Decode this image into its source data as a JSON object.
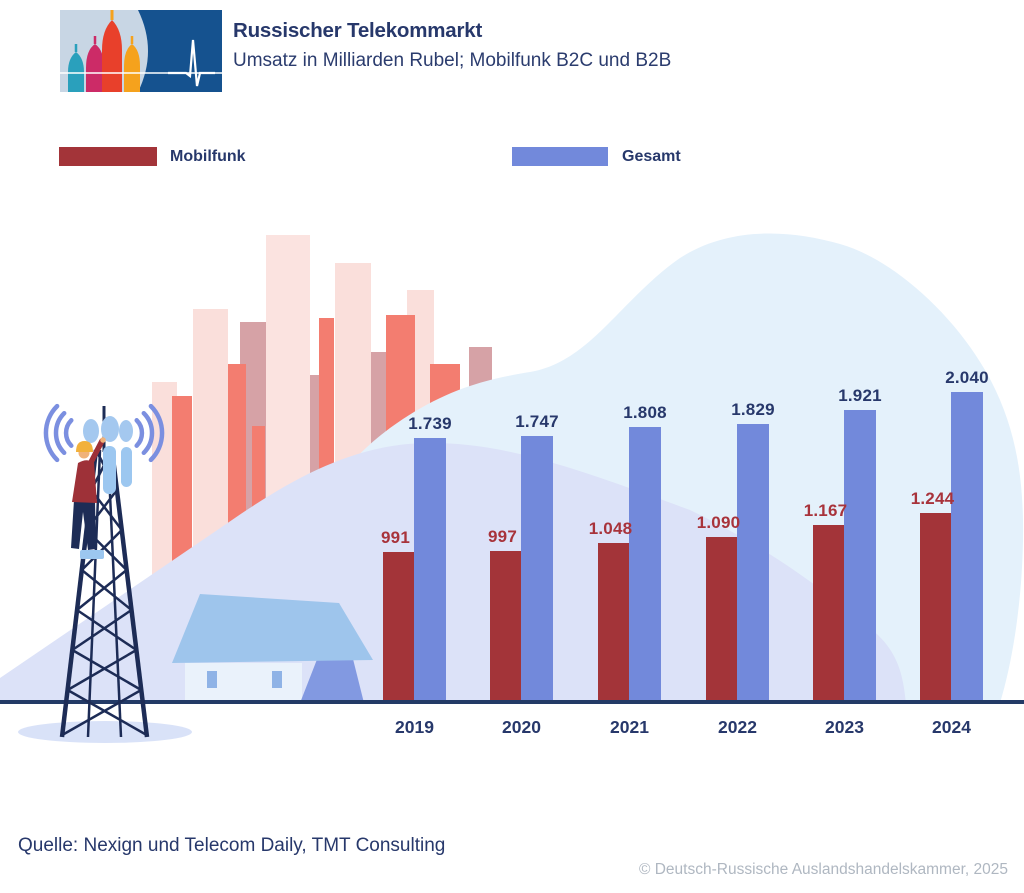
{
  "header": {
    "title": "Russischer Telekommarkt",
    "subtitle": "Umsatz in Milliarden Rubel; Mobilfunk B2C und B2B"
  },
  "logo": {
    "icons": [
      "cathedral-icon",
      "pulse-line-icon"
    ]
  },
  "legend": {
    "items": [
      {
        "label": "Mobilfunk",
        "color": "#A33439"
      },
      {
        "label": "Gesamt",
        "color": "#7289DB"
      }
    ]
  },
  "chart_data": {
    "type": "bar",
    "title": "Russischer Telekommarkt",
    "subtitle": "Umsatz in Milliarden Rubel; Mobilfunk B2C und B2B",
    "categories": [
      "2019",
      "2020",
      "2021",
      "2022",
      "2023",
      "2024"
    ],
    "series": [
      {
        "name": "Mobilfunk",
        "color": "#A33439",
        "values": [
          991,
          997,
          1048,
          1090,
          1167,
          1244
        ],
        "labels": [
          "991",
          "997",
          "1.048",
          "1.090",
          "1.167",
          "1.244"
        ]
      },
      {
        "name": "Gesamt",
        "color": "#7289DB",
        "values": [
          1739,
          1747,
          1808,
          1829,
          1921,
          2040
        ],
        "labels": [
          "1.739",
          "1.747",
          "1.808",
          "1.829",
          "1.921",
          "2.040"
        ]
      }
    ],
    "xlabel": "",
    "ylabel": "Umsatz in Milliarden Rubel",
    "ylim": [
      0,
      2200
    ],
    "grid": false,
    "legend_position": "top",
    "value_labels_shown": true,
    "axis_line_color": "#233A66"
  },
  "decoration": {
    "icons": [
      "city-skyline-icon",
      "hill-light-blue",
      "hill-lavender",
      "house-icon",
      "cell-tower-icon",
      "technician-icon",
      "wifi-waves-icon",
      "tower-shadow"
    ]
  },
  "footer": {
    "source": "Quelle: Nexign und Telecom Daily, TMT Consulting",
    "copyright": "© Deutsch-Russische Auslandshandelskammer, 2025"
  },
  "colors": {
    "mobilfunk_red": "#A33439",
    "gesamt_blue": "#7289DB",
    "red_label": "#A8333B",
    "navy_text": "#27386B",
    "baseline_navy": "#233A66",
    "skyline_light_pink": "#FADFDB",
    "skyline_salmon": "#F37D70",
    "skyline_mauve": "#D29A9E",
    "hill_light_blue": "#E4F1FB",
    "hill_lavender": "#DCE2F8",
    "copyright_gray": "#AFB7C1",
    "logo_blue": "#15528F"
  }
}
